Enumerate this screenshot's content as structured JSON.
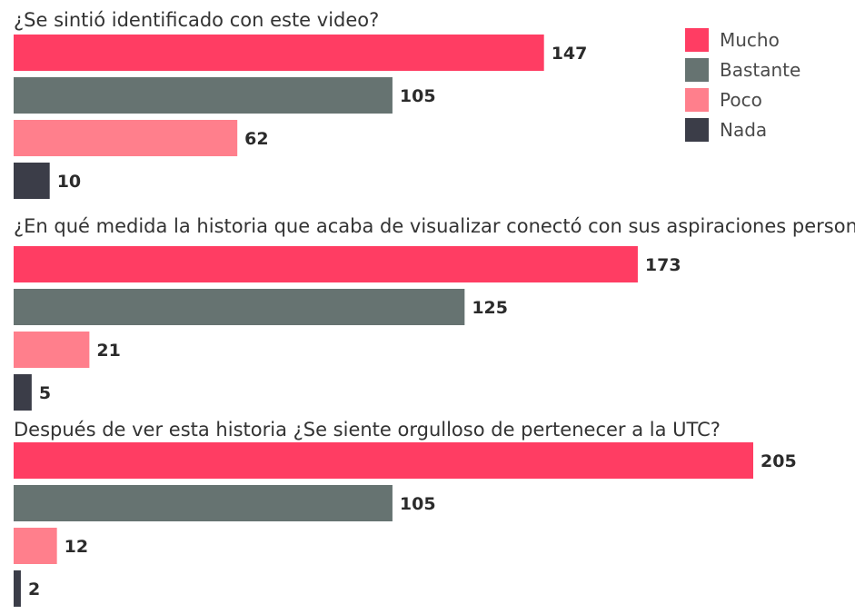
{
  "chart_data": {
    "type": "bar",
    "orientation": "horizontal",
    "legend": {
      "placement": "top-right",
      "items": [
        {
          "label": "Mucho",
          "color": "#FF3D63"
        },
        {
          "label": "Bastante",
          "color": "#667371"
        },
        {
          "label": "Poco",
          "color": "#FF7F8C"
        },
        {
          "label": "Nada",
          "color": "#3B3D48"
        }
      ]
    },
    "xlim": [
      0,
      205
    ],
    "groups": [
      {
        "title": "¿Se sintió identificado con este video?",
        "values": [
          147,
          105,
          62,
          10
        ]
      },
      {
        "title": "¿En qué medida la historia que acaba de visualizar conectó con sus aspiraciones personales?",
        "values": [
          173,
          125,
          21,
          5
        ]
      },
      {
        "title": "Después de ver esta historia ¿Se siente orgulloso de pertenecer a la UTC?",
        "values": [
          205,
          105,
          12,
          2
        ]
      }
    ]
  }
}
